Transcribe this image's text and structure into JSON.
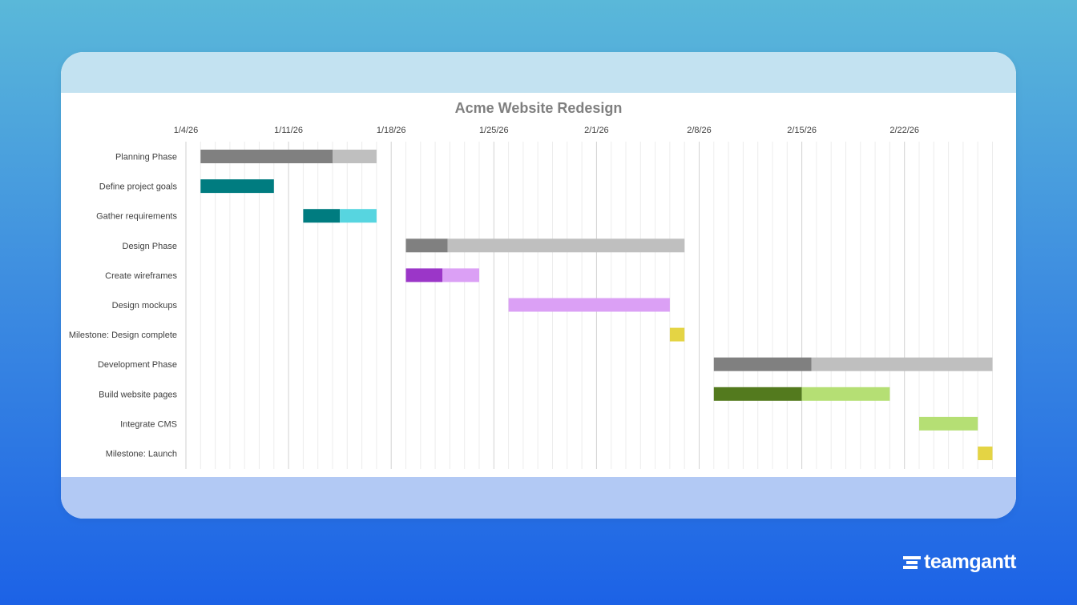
{
  "colors": {
    "background_top": "#5ab8d9",
    "background_bottom": "#1c62e6",
    "phase_done": "#808080",
    "phase_remaining": "#bfbfbf",
    "teal_done": "#007c80",
    "teal_remaining": "#57d5e0",
    "purple_done": "#9b36c8",
    "purple_remaining": "#dba0f5",
    "green_done": "#537a1e",
    "green_remaining": "#b5df74",
    "milestone": "#e4d444"
  },
  "brand": {
    "name": "teamgantt",
    "icon": "teamgantt-logo-icon"
  },
  "chart_data": {
    "type": "gantt",
    "title": "Acme Website Redesign",
    "x_axis": {
      "type": "date",
      "range": [
        "2026-01-04",
        "2026-02-28"
      ],
      "ticks": [
        "1/4/26",
        "1/11/26",
        "1/18/26",
        "1/25/26",
        "2/1/26",
        "2/8/26",
        "2/15/26",
        "2/22/26"
      ],
      "grid": true
    },
    "tasks": [
      {
        "name": "Planning Phase",
        "start": "2026-01-05",
        "end": "2026-01-17",
        "progress": 0.75,
        "color_done": "#808080",
        "color_remaining": "#bfbfbf"
      },
      {
        "name": "Define project goals",
        "start": "2026-01-05",
        "end": "2026-01-10",
        "progress": 1.0,
        "color_done": "#007c80",
        "color_remaining": "#57d5e0"
      },
      {
        "name": "Gather requirements",
        "start": "2026-01-12",
        "end": "2026-01-17",
        "progress": 0.5,
        "color_done": "#007c80",
        "color_remaining": "#57d5e0"
      },
      {
        "name": "Design Phase",
        "start": "2026-01-19",
        "end": "2026-02-07",
        "progress": 0.15,
        "color_done": "#808080",
        "color_remaining": "#bfbfbf"
      },
      {
        "name": "Create wireframes",
        "start": "2026-01-19",
        "end": "2026-01-24",
        "progress": 0.5,
        "color_done": "#9b36c8",
        "color_remaining": "#dba0f5"
      },
      {
        "name": "Design mockups",
        "start": "2026-01-26",
        "end": "2026-02-06",
        "progress": 0.0,
        "color_done": "#9b36c8",
        "color_remaining": "#dba0f5"
      },
      {
        "name": "Milestone: Design complete",
        "start": "2026-02-06",
        "end": "2026-02-07",
        "progress": 0.0,
        "color_done": "#e4d444",
        "color_remaining": "#e4d444"
      },
      {
        "name": "Development Phase",
        "start": "2026-02-09",
        "end": "2026-02-28",
        "progress": 0.35,
        "color_done": "#808080",
        "color_remaining": "#bfbfbf"
      },
      {
        "name": "Build website pages",
        "start": "2026-02-09",
        "end": "2026-02-21",
        "progress": 0.5,
        "color_done": "#537a1e",
        "color_remaining": "#b5df74"
      },
      {
        "name": "Integrate CMS",
        "start": "2026-02-23",
        "end": "2026-02-27",
        "progress": 0.0,
        "color_done": "#537a1e",
        "color_remaining": "#b5df74"
      },
      {
        "name": "Milestone: Launch",
        "start": "2026-02-27",
        "end": "2026-02-28",
        "progress": 0.0,
        "color_done": "#e4d444",
        "color_remaining": "#e4d444"
      }
    ]
  }
}
